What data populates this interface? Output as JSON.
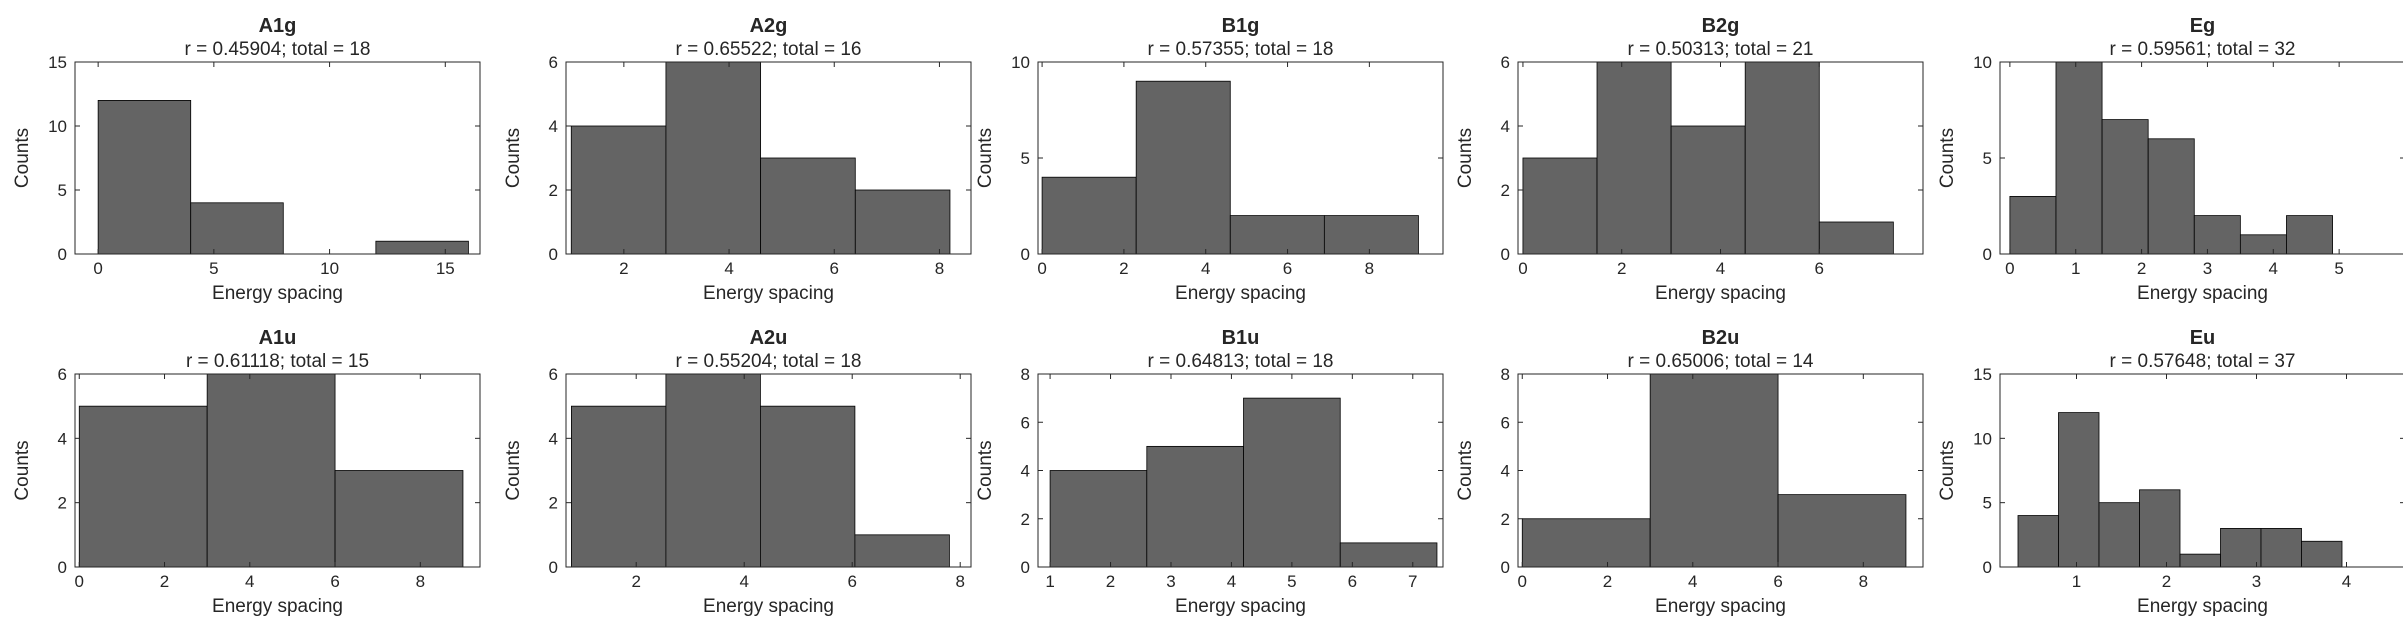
{
  "bar_color": "#646464",
  "axis_color": "#262626",
  "chart_data": [
    {
      "type": "bar",
      "title": "A1g",
      "subtitle": "r = 0.45904; total = 18",
      "xlabel": "Energy spacing",
      "ylabel": "Counts",
      "xlim": [
        -1,
        16.5
      ],
      "ylim": [
        0,
        15
      ],
      "xticks": [
        0,
        5,
        10,
        15
      ],
      "yticks": [
        0,
        5,
        10,
        15
      ],
      "bin_edges": [
        0,
        4,
        8,
        12,
        16
      ],
      "values": [
        12,
        4,
        0,
        1
      ]
    },
    {
      "type": "bar",
      "title": "A2g",
      "subtitle": "r = 0.65522; total = 16",
      "xlabel": "Energy spacing",
      "ylabel": "Counts",
      "xlim": [
        0.9,
        8.6
      ],
      "ylim": [
        0,
        6
      ],
      "xticks": [
        2,
        4,
        6,
        8
      ],
      "yticks": [
        0,
        2,
        4,
        6
      ],
      "bin_edges": [
        1,
        2.8,
        4.6,
        6.4,
        8.2
      ],
      "values": [
        4,
        6,
        3,
        2
      ]
    },
    {
      "type": "bar",
      "title": "B1g",
      "subtitle": "r = 0.57355; total = 18",
      "xlabel": "Energy spacing",
      "ylabel": "Counts",
      "xlim": [
        -0.1,
        9.8
      ],
      "ylim": [
        0,
        10
      ],
      "xticks": [
        0,
        2,
        4,
        6,
        8
      ],
      "yticks": [
        0,
        5,
        10
      ],
      "bin_edges": [
        0,
        2.3,
        4.6,
        6.9,
        9.2
      ],
      "values": [
        4,
        9,
        2,
        2
      ]
    },
    {
      "type": "bar",
      "title": "B2g",
      "subtitle": "r = 0.50313; total = 21",
      "xlabel": "Energy spacing",
      "ylabel": "Counts",
      "xlim": [
        -0.1,
        8.1
      ],
      "ylim": [
        0,
        6
      ],
      "xticks": [
        0,
        2,
        4,
        6
      ],
      "yticks": [
        0,
        2,
        4,
        6
      ],
      "bin_edges": [
        0,
        1.5,
        3,
        4.5,
        6,
        7.5
      ],
      "values": [
        3,
        6,
        4,
        6,
        1
      ]
    },
    {
      "type": "bar",
      "title": "Eg",
      "subtitle": "r = 0.59561; total = 32",
      "xlabel": "Energy spacing",
      "ylabel": "Counts",
      "xlim": [
        -0.15,
        6
      ],
      "ylim": [
        0,
        10
      ],
      "xticks": [
        0,
        1,
        2,
        3,
        4,
        5
      ],
      "yticks": [
        0,
        5,
        10
      ],
      "bin_edges": [
        0,
        0.7,
        1.4,
        2.1,
        2.8,
        3.5,
        4.2,
        4.9,
        5.6
      ],
      "values": [
        3,
        10,
        7,
        6,
        2,
        1,
        2,
        0
      ]
    },
    {
      "type": "bar",
      "title": "A1u",
      "subtitle": "r = 0.61118; total = 15",
      "xlabel": "Energy spacing",
      "ylabel": "Counts",
      "xlim": [
        -0.1,
        9.4
      ],
      "ylim": [
        0,
        6
      ],
      "xticks": [
        0,
        2,
        4,
        6,
        8
      ],
      "yticks": [
        0,
        2,
        4,
        6
      ],
      "bin_edges": [
        0,
        3,
        6,
        9
      ],
      "values": [
        5,
        6,
        3
      ]
    },
    {
      "type": "bar",
      "title": "A2u",
      "subtitle": "r = 0.55204; total = 18",
      "xlabel": "Energy spacing",
      "ylabel": "Counts",
      "xlim": [
        0.7,
        8.2
      ],
      "ylim": [
        0,
        6
      ],
      "xticks": [
        2,
        4,
        6,
        8
      ],
      "yticks": [
        0,
        2,
        4,
        6
      ],
      "bin_edges": [
        0.8,
        2.55,
        4.3,
        6.05,
        7.8
      ],
      "values": [
        5,
        6,
        5,
        1
      ]
    },
    {
      "type": "bar",
      "title": "B1u",
      "subtitle": "r = 0.64813; total = 18",
      "xlabel": "Energy spacing",
      "ylabel": "Counts",
      "xlim": [
        0.8,
        7.5
      ],
      "ylim": [
        0,
        8
      ],
      "xticks": [
        1,
        2,
        3,
        4,
        5,
        6,
        7
      ],
      "yticks": [
        0,
        2,
        4,
        6,
        8
      ],
      "bin_edges": [
        1,
        2.6,
        4.2,
        5.8,
        7.4
      ],
      "values": [
        4,
        5,
        7,
        1
      ]
    },
    {
      "type": "bar",
      "title": "B2u",
      "subtitle": "r = 0.65006; total = 14",
      "xlabel": "Energy spacing",
      "ylabel": "Counts",
      "xlim": [
        -0.1,
        9.4
      ],
      "ylim": [
        0,
        8
      ],
      "xticks": [
        0,
        2,
        4,
        6,
        8
      ],
      "yticks": [
        0,
        2,
        4,
        6,
        8
      ],
      "bin_edges": [
        0,
        3,
        6,
        9
      ],
      "values": [
        2,
        8,
        3
      ]
    },
    {
      "type": "bar",
      "title": "Eu",
      "subtitle": "r = 0.57648; total = 37",
      "xlabel": "Energy spacing",
      "ylabel": "Counts",
      "xlim": [
        0.15,
        4.65
      ],
      "ylim": [
        0,
        15
      ],
      "xticks": [
        1,
        2,
        3,
        4
      ],
      "yticks": [
        0,
        5,
        10,
        15
      ],
      "bin_edges": [
        0.35,
        0.8,
        1.25,
        1.7,
        2.15,
        2.6,
        3.05,
        3.5,
        3.95,
        4.4
      ],
      "values": [
        4,
        12,
        5,
        6,
        1,
        3,
        3,
        2,
        0
      ]
    }
  ]
}
